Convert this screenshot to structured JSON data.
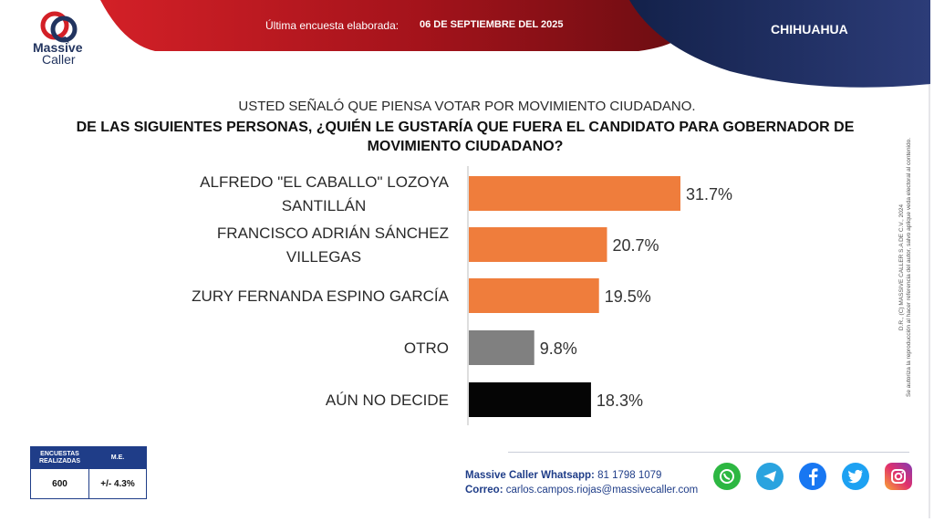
{
  "header": {
    "survey_label": "Última encuesta elaborada:",
    "survey_date": "06 DE SEPTIEMBRE DEL 2025",
    "state": "CHIHUAHUA",
    "logo_line1": "Massive",
    "logo_line2": "Caller"
  },
  "question": {
    "intro": "USTED SEÑALÓ QUE PIENSA VOTAR POR MOVIMIENTO CIUDADANO.",
    "main_line1": "DE LAS SIGUIENTES PERSONAS, ¿QUIÉN LE GUSTARÍA QUE FUERA EL CANDIDATO PARA GOBERNADOR DE",
    "main_line2": "MOVIMIENTO CIUDADANO?"
  },
  "chart_data": {
    "type": "bar",
    "orientation": "horizontal",
    "categories": [
      [
        "ALFREDO \"EL CABALLO\" LOZOYA",
        "SANTILLÁN"
      ],
      [
        "FRANCISCO ADRIÁN SÁNCHEZ",
        "VILLEGAS"
      ],
      [
        "ZURY FERNANDA ESPINO GARCÍA"
      ],
      [
        "OTRO"
      ],
      [
        "AÚN NO DECIDE"
      ]
    ],
    "values": [
      31.7,
      20.7,
      19.5,
      9.8,
      18.3
    ],
    "labels": [
      "31.7%",
      "20.7%",
      "19.5%",
      "9.8%",
      "18.3%"
    ],
    "colors": [
      "#ef7d3c",
      "#ef7d3c",
      "#ef7d3c",
      "#808080",
      "#050505"
    ],
    "xlim": [
      0,
      40
    ]
  },
  "side_note": {
    "line1": "D.R., (C) MASSIVE CALLER S.A DE C.V., 2024",
    "line2": "Se autoriza la reproducción al hacer referencia del autor, salvo aplique veda electoral al contenido."
  },
  "stats_table": {
    "col1_header": "ENCUESTAS REALIZADAS",
    "col2_header": "M.E.",
    "col1_value": "600",
    "col2_value": "+/- 4.3%"
  },
  "contact": {
    "whatsapp_label": "Massive Caller Whatsapp:",
    "whatsapp_number": "81 1798 1079",
    "email_label": "Correo:",
    "email": "carlos.campos.riojas@massivecaller.com"
  },
  "social_icons": [
    "whatsapp-icon",
    "telegram-icon",
    "facebook-icon",
    "twitter-icon",
    "instagram-icon"
  ],
  "colors": {
    "header_red": "#b0141c",
    "header_navy": "#1f2d5c",
    "brand_blue": "#1f3d88",
    "bar_orange": "#ef7d3c"
  }
}
